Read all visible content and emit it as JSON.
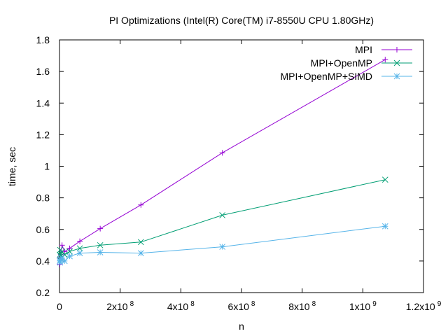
{
  "chart_data": {
    "type": "line",
    "title": "PI Optimizations (Intel(R) Core(TM) i7-8550U CPU 1.80GHz)",
    "xlabel": "n",
    "ylabel": "time, sec",
    "xlim": [
      0,
      1200000000
    ],
    "ylim": [
      0.2,
      1.8
    ],
    "grid": false,
    "legend_position": "top-right",
    "x_ticks": [
      {
        "value": 0,
        "label": "0",
        "exp": ""
      },
      {
        "value": 200000000,
        "label": "2x10",
        "exp": "8"
      },
      {
        "value": 400000000,
        "label": "4x10",
        "exp": "8"
      },
      {
        "value": 600000000,
        "label": "6x10",
        "exp": "8"
      },
      {
        "value": 800000000,
        "label": "8x10",
        "exp": "8"
      },
      {
        "value": 1000000000,
        "label": "1x10",
        "exp": "9"
      },
      {
        "value": 1200000000,
        "label": "1.2x10",
        "exp": "9"
      }
    ],
    "y_ticks": [
      {
        "value": 0.2,
        "label": "0.2"
      },
      {
        "value": 0.4,
        "label": "0.4"
      },
      {
        "value": 0.6,
        "label": "0.6"
      },
      {
        "value": 0.8,
        "label": "0.8"
      },
      {
        "value": 1.0,
        "label": "1"
      },
      {
        "value": 1.2,
        "label": "1.2"
      },
      {
        "value": 1.4,
        "label": "1.4"
      },
      {
        "value": 1.6,
        "label": "1.6"
      },
      {
        "value": 1.8,
        "label": "1.8"
      }
    ],
    "x": [
      1048576,
      2097152,
      4194304,
      8388608,
      16777216,
      33554432,
      67108864,
      134217728,
      268435456,
      536870912,
      1073741824
    ],
    "series": [
      {
        "name": "MPI",
        "color": "#9400d3",
        "marker": "plus",
        "values": [
          0.38,
          0.42,
          0.44,
          0.5,
          0.46,
          0.48,
          0.525,
          0.605,
          0.755,
          1.085,
          1.675
        ]
      },
      {
        "name": "MPI+OpenMP",
        "color": "#009e73",
        "marker": "cross",
        "values": [
          0.44,
          0.47,
          0.43,
          0.46,
          0.44,
          0.46,
          0.48,
          0.5,
          0.52,
          0.69,
          0.915
        ]
      },
      {
        "name": "MPI+OpenMP+SIMD",
        "color": "#56b4e9",
        "marker": "star",
        "values": [
          0.4,
          0.39,
          0.41,
          0.42,
          0.4,
          0.43,
          0.45,
          0.455,
          0.45,
          0.49,
          0.62
        ]
      }
    ]
  }
}
